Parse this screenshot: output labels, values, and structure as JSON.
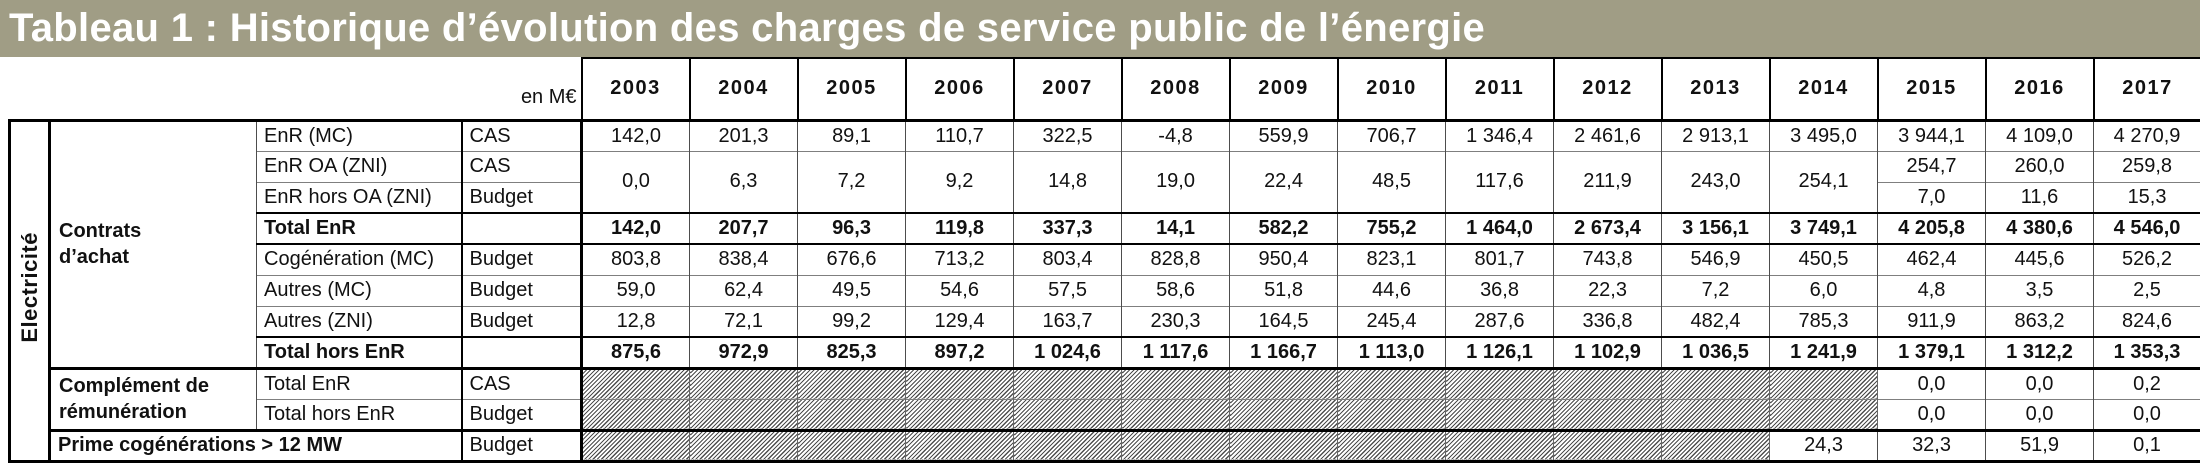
{
  "title": "Tableau 1 : Historique d’évolution des charges de service public de l’énergie",
  "unit_label": "en M€",
  "colors": {
    "title_bg": "#a09d85",
    "title_text": "#ffffff",
    "hatch_line": "#4e4e4e",
    "grid_line": "#7f7f7f",
    "strong_line": "#000000"
  },
  "chart_data": {
    "type": "table",
    "sector_label": "Electricité",
    "years": [
      "2003",
      "2004",
      "2005",
      "2006",
      "2007",
      "2008",
      "2009",
      "2010",
      "2011",
      "2012",
      "2013",
      "2014",
      "2015",
      "2016",
      "2017"
    ],
    "groups": [
      {
        "label": "Contrats d’achat",
        "rowspan": 8
      },
      {
        "label": "Complément de rémunération",
        "rowspan": 2
      }
    ],
    "rows": [
      {
        "id": "enr-mc",
        "label": "EnR (MC)",
        "funding": "CAS",
        "values": [
          "142,0",
          "201,3",
          "89,1",
          "110,7",
          "322,5",
          "-4,8",
          "559,9",
          "706,7",
          "1 346,4",
          "2 461,6",
          "2 913,1",
          "3 495,0",
          "3 944,1",
          "4 109,0",
          "4 270,9"
        ]
      },
      {
        "id": "enr-oa-zni",
        "label": "EnR OA (ZNI)",
        "funding": "CAS",
        "merged": [
          "0,0",
          "6,3",
          "7,2",
          "9,2",
          "14,8",
          "19,0",
          "22,4",
          "48,5",
          "117,6",
          "211,9",
          "243,0",
          "254,1"
        ],
        "values": [
          "254,7",
          "260,0",
          "259,8"
        ]
      },
      {
        "id": "enr-hors-oa-zni",
        "label": "EnR hors OA (ZNI)",
        "funding": "Budget",
        "merge_into_above": true,
        "values": [
          "7,0",
          "11,6",
          "15,3"
        ]
      },
      {
        "id": "total-enr",
        "label": "Total EnR",
        "funding": "",
        "total": true,
        "values": [
          "142,0",
          "207,7",
          "96,3",
          "119,8",
          "337,3",
          "14,1",
          "582,2",
          "755,2",
          "1 464,0",
          "2 673,4",
          "3 156,1",
          "3 749,1",
          "4 205,8",
          "4 380,6",
          "4 546,0"
        ]
      },
      {
        "id": "cogeneration-mc",
        "label": "Cogénération (MC)",
        "funding": "Budget",
        "values": [
          "803,8",
          "838,4",
          "676,6",
          "713,2",
          "803,4",
          "828,8",
          "950,4",
          "823,1",
          "801,7",
          "743,8",
          "546,9",
          "450,5",
          "462,4",
          "445,6",
          "526,2"
        ]
      },
      {
        "id": "autres-mc",
        "label": "Autres (MC)",
        "funding": "Budget",
        "values": [
          "59,0",
          "62,4",
          "49,5",
          "54,6",
          "57,5",
          "58,6",
          "51,8",
          "44,6",
          "36,8",
          "22,3",
          "7,2",
          "6,0",
          "4,8",
          "3,5",
          "2,5"
        ]
      },
      {
        "id": "autres-zni",
        "label": "Autres (ZNI)",
        "funding": "Budget",
        "values": [
          "12,8",
          "72,1",
          "99,2",
          "129,4",
          "163,7",
          "230,3",
          "164,5",
          "245,4",
          "287,6",
          "336,8",
          "482,4",
          "785,3",
          "911,9",
          "863,2",
          "824,6"
        ]
      },
      {
        "id": "total-hors-enr",
        "label": "Total hors EnR",
        "funding": "",
        "total": true,
        "values": [
          "875,6",
          "972,9",
          "825,3",
          "897,2",
          "1 024,6",
          "1 117,6",
          "1 166,7",
          "1 113,0",
          "1 126,1",
          "1 102,9",
          "1 036,5",
          "1 241,9",
          "1 379,1",
          "1 312,2",
          "1 353,3"
        ]
      },
      {
        "id": "cr-total-enr",
        "label": "Total EnR",
        "funding": "CAS",
        "section_start": true,
        "hatch": 12,
        "values": [
          "0,0",
          "0,0",
          "0,2"
        ]
      },
      {
        "id": "cr-total-hors-enr",
        "label": "Total hors EnR",
        "funding": "Budget",
        "hatch": 12,
        "values": [
          "0,0",
          "0,0",
          "0,0"
        ]
      },
      {
        "id": "prime-cogenerations",
        "label": "Prime cogénérations > 12 MW",
        "funding": "Budget",
        "section_start": true,
        "span_label": true,
        "label_bold": true,
        "hatch": 11,
        "values": [
          "24,3",
          "32,3",
          "51,9",
          "0,1"
        ]
      }
    ]
  }
}
